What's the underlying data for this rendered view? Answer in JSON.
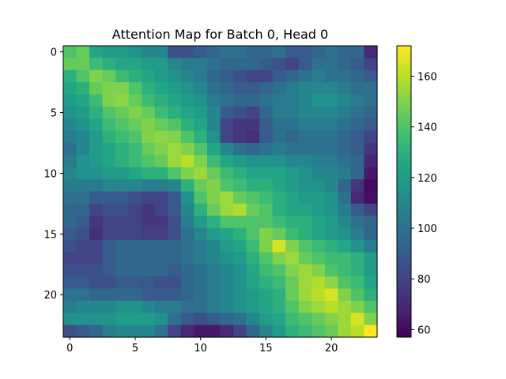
{
  "chart_data": {
    "type": "heatmap",
    "title": "Attention Map for Batch 0, Head 0",
    "xlabel": "",
    "ylabel": "",
    "colormap": "viridis",
    "value_range": [
      57,
      172
    ],
    "rows": 24,
    "cols": 24,
    "x_ticks": [
      0,
      5,
      10,
      15,
      20
    ],
    "y_ticks": [
      0,
      5,
      10,
      15,
      20
    ],
    "colorbar_ticks": [
      60,
      80,
      100,
      120,
      140,
      160
    ],
    "values": [
      [
        140,
        145,
        125,
        120,
        120,
        115,
        110,
        110,
        85,
        85,
        90,
        95,
        100,
        100,
        95,
        95,
        100,
        90,
        90,
        95,
        100,
        95,
        95,
        70
      ],
      [
        145,
        145,
        135,
        130,
        125,
        125,
        120,
        120,
        110,
        105,
        105,
        100,
        95,
        95,
        95,
        90,
        85,
        80,
        90,
        100,
        100,
        95,
        90,
        80
      ],
      [
        130,
        140,
        150,
        145,
        135,
        130,
        125,
        120,
        115,
        110,
        105,
        95,
        90,
        85,
        80,
        80,
        90,
        95,
        100,
        105,
        100,
        100,
        95,
        90
      ],
      [
        125,
        130,
        145,
        150,
        150,
        140,
        130,
        125,
        120,
        115,
        110,
        100,
        95,
        90,
        90,
        95,
        100,
        105,
        110,
        110,
        110,
        105,
        100,
        100
      ],
      [
        120,
        125,
        135,
        150,
        152,
        145,
        135,
        130,
        125,
        120,
        115,
        105,
        100,
        95,
        95,
        100,
        105,
        105,
        110,
        115,
        115,
        110,
        105,
        100
      ],
      [
        115,
        120,
        130,
        140,
        145,
        150,
        145,
        135,
        130,
        125,
        120,
        110,
        90,
        85,
        80,
        95,
        105,
        105,
        110,
        110,
        110,
        105,
        100,
        95
      ],
      [
        110,
        115,
        125,
        135,
        140,
        145,
        150,
        145,
        140,
        130,
        125,
        110,
        80,
        75,
        75,
        90,
        100,
        100,
        105,
        105,
        105,
        100,
        95,
        90
      ],
      [
        105,
        110,
        120,
        130,
        135,
        140,
        150,
        152,
        150,
        140,
        130,
        115,
        80,
        75,
        72,
        90,
        100,
        95,
        100,
        100,
        100,
        95,
        90,
        80
      ],
      [
        100,
        110,
        120,
        125,
        130,
        135,
        145,
        150,
        155,
        150,
        140,
        125,
        110,
        100,
        95,
        100,
        105,
        100,
        100,
        100,
        100,
        95,
        90,
        75
      ],
      [
        105,
        115,
        120,
        125,
        130,
        135,
        140,
        145,
        155,
        160,
        150,
        135,
        125,
        120,
        115,
        115,
        115,
        110,
        110,
        105,
        105,
        100,
        95,
        70
      ],
      [
        110,
        115,
        115,
        120,
        120,
        125,
        130,
        130,
        140,
        150,
        155,
        145,
        135,
        130,
        125,
        125,
        125,
        120,
        115,
        110,
        110,
        105,
        95,
        65
      ],
      [
        105,
        105,
        105,
        110,
        110,
        110,
        105,
        105,
        110,
        130,
        145,
        150,
        140,
        135,
        130,
        130,
        125,
        120,
        115,
        115,
        110,
        95,
        75,
        60
      ],
      [
        100,
        100,
        90,
        90,
        90,
        85,
        80,
        80,
        90,
        115,
        140,
        150,
        155,
        145,
        140,
        135,
        130,
        125,
        120,
        120,
        115,
        100,
        70,
        62
      ],
      [
        95,
        95,
        80,
        85,
        85,
        80,
        75,
        80,
        90,
        110,
        130,
        145,
        155,
        158,
        145,
        140,
        130,
        125,
        125,
        120,
        115,
        105,
        90,
        80
      ],
      [
        95,
        90,
        75,
        80,
        80,
        80,
        75,
        75,
        85,
        105,
        120,
        130,
        140,
        140,
        140,
        140,
        135,
        130,
        130,
        125,
        120,
        110,
        100,
        95
      ],
      [
        90,
        85,
        72,
        80,
        80,
        80,
        78,
        78,
        85,
        100,
        110,
        120,
        125,
        130,
        140,
        150,
        145,
        135,
        130,
        125,
        120,
        115,
        105,
        95
      ],
      [
        85,
        80,
        80,
        90,
        95,
        95,
        95,
        95,
        95,
        100,
        105,
        110,
        120,
        125,
        135,
        150,
        165,
        150,
        140,
        135,
        130,
        125,
        115,
        105
      ],
      [
        80,
        80,
        80,
        90,
        95,
        95,
        95,
        95,
        95,
        100,
        105,
        110,
        115,
        120,
        130,
        140,
        150,
        155,
        145,
        140,
        135,
        135,
        130,
        120
      ],
      [
        85,
        85,
        85,
        90,
        95,
        95,
        95,
        95,
        90,
        95,
        100,
        105,
        110,
        115,
        125,
        135,
        140,
        150,
        155,
        150,
        140,
        135,
        130,
        120
      ],
      [
        90,
        90,
        85,
        85,
        90,
        90,
        88,
        85,
        85,
        95,
        100,
        105,
        110,
        115,
        125,
        130,
        135,
        145,
        155,
        158,
        152,
        140,
        135,
        125
      ],
      [
        100,
        100,
        95,
        95,
        95,
        95,
        90,
        90,
        90,
        95,
        100,
        105,
        110,
        115,
        120,
        125,
        130,
        145,
        155,
        160,
        165,
        150,
        140,
        130
      ],
      [
        105,
        110,
        110,
        110,
        115,
        115,
        110,
        105,
        105,
        100,
        100,
        105,
        110,
        115,
        120,
        125,
        130,
        140,
        150,
        155,
        160,
        155,
        150,
        140
      ],
      [
        115,
        115,
        115,
        115,
        120,
        120,
        120,
        115,
        100,
        90,
        85,
        90,
        95,
        100,
        110,
        120,
        125,
        135,
        140,
        145,
        150,
        155,
        165,
        150
      ],
      [
        85,
        90,
        95,
        105,
        110,
        110,
        110,
        100,
        80,
        70,
        65,
        65,
        70,
        80,
        95,
        110,
        120,
        130,
        135,
        140,
        145,
        155,
        160,
        172
      ]
    ]
  }
}
